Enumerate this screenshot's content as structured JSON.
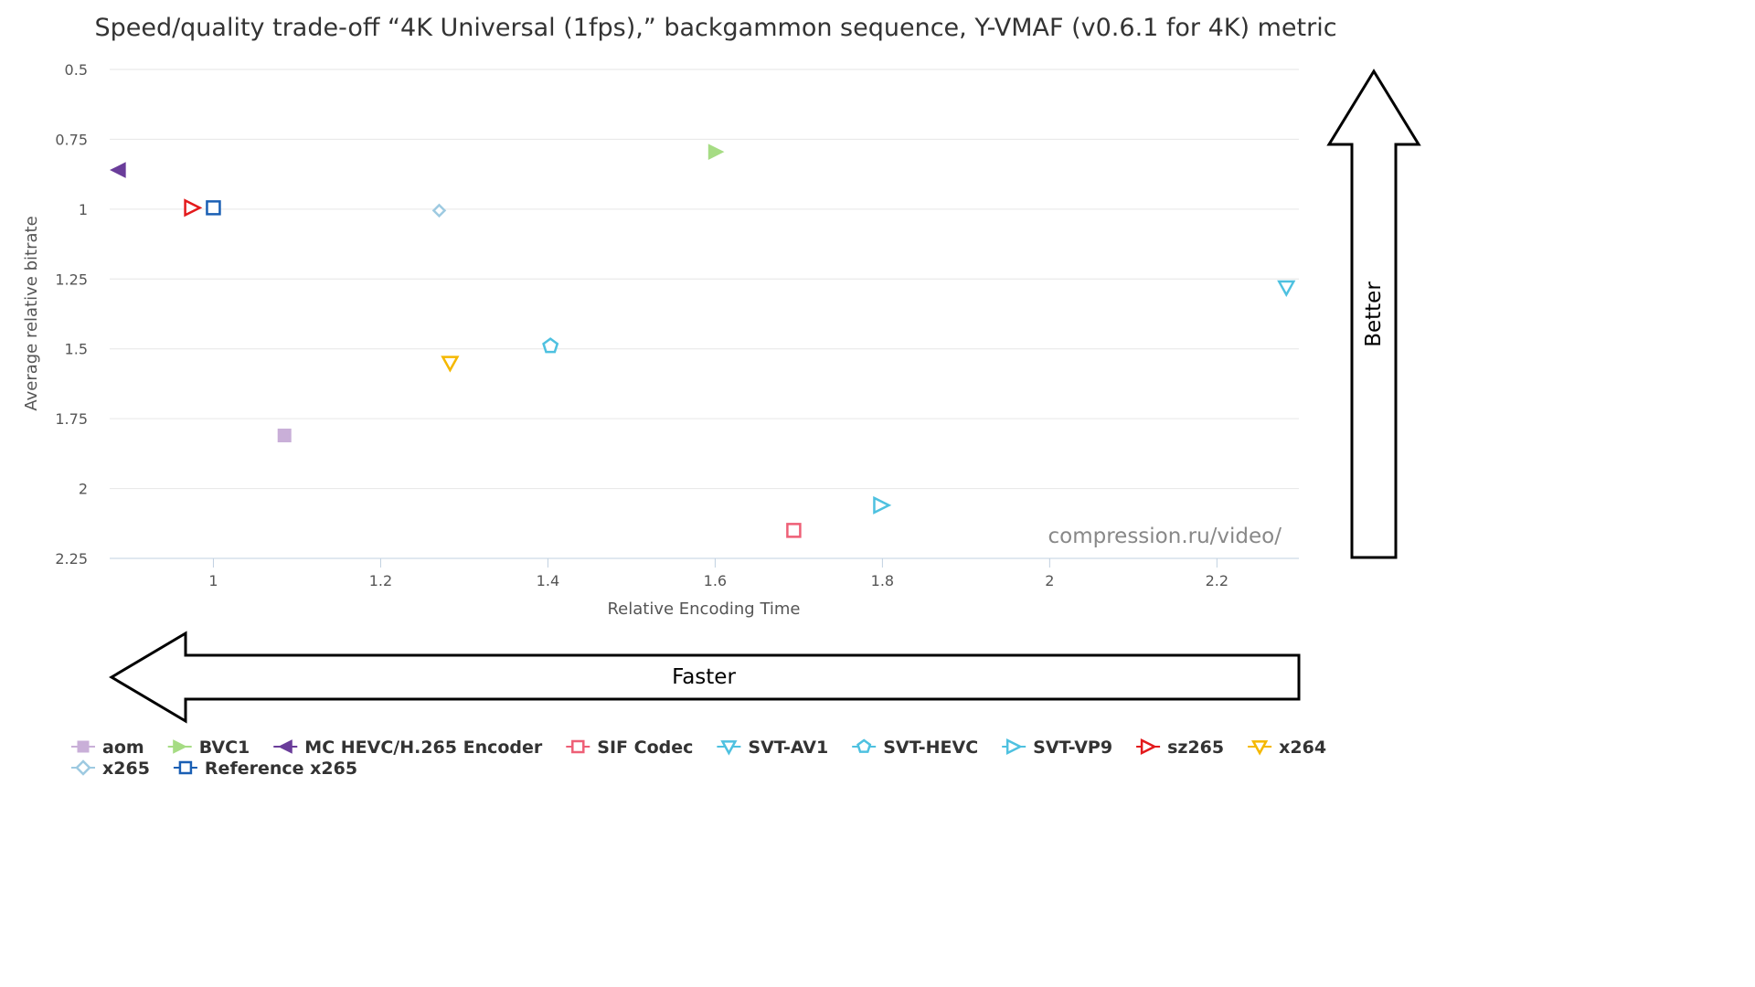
{
  "chart_data": {
    "type": "scatter",
    "title": "Speed/quality trade-off “4K Universal (1fps),” backgammon sequence, Y-VMAF (v0.6.1 for 4K) metric",
    "xlabel": "Relative Encoding Time",
    "ylabel": "Average relative bitrate",
    "xlim": [
      0.876,
      2.298
    ],
    "ylim": [
      0.5,
      2.25
    ],
    "y_reversed": true,
    "x_ticks": [
      1,
      1.2,
      1.4,
      1.6,
      1.8,
      2,
      2.2
    ],
    "x_tick_labels": [
      "1",
      "1.2",
      "1.4",
      "1.6",
      "1.8",
      "2",
      "2.2"
    ],
    "y_ticks": [
      0.5,
      0.75,
      1,
      1.25,
      1.5,
      1.75,
      2,
      2.25
    ],
    "y_tick_labels": [
      "0.5",
      "0.75",
      "1",
      "1.25",
      "1.5",
      "1.75",
      "2",
      "2.25"
    ],
    "grid": "horizontal",
    "legend_position": "bottom",
    "watermark": "compression.ru/video/",
    "better_label": "Better",
    "faster_label": "Faster",
    "series": [
      {
        "name": "aom",
        "color": "#c9afd8",
        "marker": "square-filled",
        "points": [
          [
            1.085,
            1.81
          ]
        ]
      },
      {
        "name": "BVC1",
        "color": "#a6dc84",
        "marker": "triangle-right-filled",
        "points": [
          [
            1.601,
            0.795
          ]
        ]
      },
      {
        "name": "MC HEVC/H.265 Encoder",
        "color": "#6a3d9a",
        "marker": "triangle-left-filled",
        "points": [
          [
            0.886,
            0.86
          ]
        ]
      },
      {
        "name": "SIF Codec",
        "color": "#ee5f76",
        "marker": "square-open",
        "points": [
          [
            1.694,
            2.15
          ]
        ]
      },
      {
        "name": "SVT-AV1",
        "color": "#4ec1e0",
        "marker": "triangle-down-open",
        "points": [
          [
            2.283,
            1.28
          ]
        ]
      },
      {
        "name": "SVT-HEVC",
        "color": "#4ec1e0",
        "marker": "pentagon-open",
        "points": [
          [
            1.403,
            1.49
          ]
        ]
      },
      {
        "name": "SVT-VP9",
        "color": "#4ec1e0",
        "marker": "triangle-right-open",
        "points": [
          [
            1.799,
            2.06
          ]
        ]
      },
      {
        "name": "sz265",
        "color": "#e31a1c",
        "marker": "triangle-right-open",
        "points": [
          [
            0.975,
            0.995
          ]
        ]
      },
      {
        "name": "x264",
        "color": "#f5b800",
        "marker": "triangle-down-open",
        "points": [
          [
            1.283,
            1.55
          ]
        ]
      },
      {
        "name": "x265",
        "color": "#9ecae1",
        "marker": "diamond-open",
        "points": [
          [
            1.27,
            1.005
          ]
        ]
      },
      {
        "name": "Reference x265",
        "color": "#1a5fb4",
        "marker": "square-open",
        "points": [
          [
            1.0,
            0.995
          ]
        ]
      }
    ]
  }
}
